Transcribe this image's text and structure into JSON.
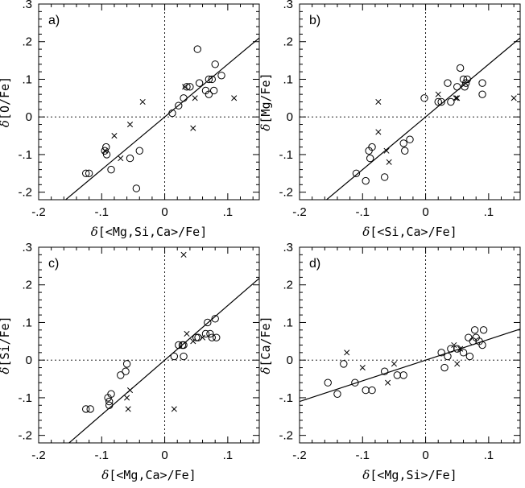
{
  "chart_data": [
    {
      "type": "scatter",
      "panel": "a)",
      "xlabel_prefix": "δ",
      "xlabel": "[<Mg,Si,Ca>/Fe]",
      "ylabel_prefix": "δ",
      "ylabel": "[O/Fe]",
      "xlim": [
        -0.2,
        0.15
      ],
      "ylim": [
        -0.22,
        0.3
      ],
      "xticks": [
        -0.2,
        -0.1,
        0,
        0.1
      ],
      "xtick_labels": [
        "-.2",
        "-.1",
        "0",
        ".1"
      ],
      "yticks": [
        -0.2,
        -0.1,
        0,
        0.1,
        0.2,
        0.3
      ],
      "ytick_labels": [
        "-.2",
        "-.1",
        "0",
        ".1",
        ".2",
        ".3"
      ],
      "fit_line": {
        "slope": 1.4,
        "intercept": 0.0
      },
      "series": [
        {
          "marker": "circle",
          "points": [
            [
              -0.125,
              -0.15
            ],
            [
              -0.12,
              -0.15
            ],
            [
              -0.095,
              -0.09
            ],
            [
              -0.093,
              -0.08
            ],
            [
              -0.092,
              -0.1
            ],
            [
              -0.085,
              -0.14
            ],
            [
              -0.055,
              -0.11
            ],
            [
              -0.045,
              -0.19
            ],
            [
              -0.04,
              -0.09
            ],
            [
              0.012,
              0.01
            ],
            [
              0.022,
              0.03
            ],
            [
              0.03,
              0.05
            ],
            [
              0.035,
              0.08
            ],
            [
              0.04,
              0.08
            ],
            [
              0.052,
              0.18
            ],
            [
              0.055,
              0.09
            ],
            [
              0.065,
              0.07
            ],
            [
              0.07,
              0.06
            ],
            [
              0.07,
              0.1
            ],
            [
              0.075,
              0.1
            ],
            [
              0.08,
              0.14
            ],
            [
              0.078,
              0.07
            ],
            [
              0.09,
              0.11
            ]
          ]
        },
        {
          "marker": "cross",
          "points": [
            [
              -0.095,
              -0.09
            ],
            [
              -0.08,
              -0.05
            ],
            [
              -0.07,
              -0.11
            ],
            [
              -0.055,
              -0.02
            ],
            [
              -0.035,
              0.04
            ],
            [
              0.032,
              0.08
            ],
            [
              0.045,
              -0.03
            ],
            [
              0.048,
              0.05
            ],
            [
              0.11,
              0.05
            ]
          ]
        }
      ]
    },
    {
      "type": "scatter",
      "panel": "b)",
      "xlabel_prefix": "δ",
      "xlabel": "[<Si,Ca>/Fe]",
      "ylabel_prefix": "δ",
      "ylabel": "[Mg/Fe]",
      "xlim": [
        -0.2,
        0.15
      ],
      "ylim": [
        -0.22,
        0.3
      ],
      "xticks": [
        -0.2,
        -0.1,
        0,
        0.1
      ],
      "xtick_labels": [
        "-.2",
        "-.1",
        "0",
        ".1"
      ],
      "yticks": [
        -0.2,
        -0.1,
        0,
        0.1,
        0.2,
        0.3
      ],
      "ytick_labels": [
        "-.2",
        "-.1",
        "0",
        ".1",
        ".2",
        ".3"
      ],
      "fit_line": {
        "slope": 1.4,
        "intercept": 0.0
      },
      "series": [
        {
          "marker": "circle",
          "points": [
            [
              -0.11,
              -0.15
            ],
            [
              -0.095,
              -0.17
            ],
            [
              -0.09,
              -0.09
            ],
            [
              -0.088,
              -0.11
            ],
            [
              -0.085,
              -0.08
            ],
            [
              -0.065,
              -0.16
            ],
            [
              -0.035,
              -0.07
            ],
            [
              -0.033,
              -0.09
            ],
            [
              -0.025,
              -0.06
            ],
            [
              -0.002,
              0.05
            ],
            [
              0.02,
              0.04
            ],
            [
              0.025,
              0.04
            ],
            [
              0.035,
              0.09
            ],
            [
              0.04,
              0.04
            ],
            [
              0.05,
              0.08
            ],
            [
              0.055,
              0.13
            ],
            [
              0.06,
              0.1
            ],
            [
              0.062,
              0.08
            ],
            [
              0.064,
              0.09
            ],
            [
              0.066,
              0.1
            ],
            [
              0.09,
              0.09
            ],
            [
              0.09,
              0.06
            ]
          ]
        },
        {
          "marker": "cross",
          "points": [
            [
              -0.075,
              0.04
            ],
            [
              -0.075,
              -0.04
            ],
            [
              -0.062,
              -0.09
            ],
            [
              -0.058,
              -0.12
            ],
            [
              0.02,
              0.06
            ],
            [
              0.048,
              0.05
            ],
            [
              0.05,
              0.05
            ],
            [
              0.14,
              0.05
            ]
          ]
        }
      ]
    },
    {
      "type": "scatter",
      "panel": "c)",
      "xlabel_prefix": "δ",
      "xlabel": "[<Mg,Ca>/Fe]",
      "ylabel_prefix": "δ",
      "ylabel": "[Si/Fe]",
      "xlim": [
        -0.2,
        0.15
      ],
      "ylim": [
        -0.22,
        0.3
      ],
      "xticks": [
        -0.2,
        -0.1,
        0,
        0.1
      ],
      "xtick_labels": [
        "-.2",
        "-.1",
        "0",
        ".1"
      ],
      "yticks": [
        -0.2,
        -0.1,
        0,
        0.1,
        0.2,
        0.3
      ],
      "ytick_labels": [
        "-.2",
        "-.1",
        "0",
        ".1",
        ".2",
        ".3"
      ],
      "fit_line": {
        "slope": 1.45,
        "intercept": 0.0
      },
      "series": [
        {
          "marker": "circle",
          "points": [
            [
              -0.125,
              -0.13
            ],
            [
              -0.118,
              -0.13
            ],
            [
              -0.09,
              -0.1
            ],
            [
              -0.088,
              -0.11
            ],
            [
              -0.088,
              -0.12
            ],
            [
              -0.085,
              -0.09
            ],
            [
              -0.07,
              -0.04
            ],
            [
              -0.062,
              -0.03
            ],
            [
              -0.06,
              -0.01
            ],
            [
              0.015,
              0.01
            ],
            [
              0.022,
              0.04
            ],
            [
              0.028,
              0.04
            ],
            [
              0.03,
              0.01
            ],
            [
              0.03,
              0.04
            ],
            [
              0.05,
              0.06
            ],
            [
              0.053,
              0.06
            ],
            [
              0.065,
              0.07
            ],
            [
              0.068,
              0.1
            ],
            [
              0.072,
              0.07
            ],
            [
              0.075,
              0.06
            ],
            [
              0.08,
              0.11
            ],
            [
              0.082,
              0.06
            ]
          ]
        },
        {
          "marker": "cross",
          "points": [
            [
              -0.06,
              -0.1
            ],
            [
              -0.058,
              -0.13
            ],
            [
              -0.055,
              -0.08
            ],
            [
              0.015,
              -0.13
            ],
            [
              0.03,
              0.28
            ],
            [
              0.035,
              0.07
            ],
            [
              0.045,
              0.05
            ],
            [
              0.06,
              0.06
            ]
          ]
        }
      ]
    },
    {
      "type": "scatter",
      "panel": "d)",
      "xlabel_prefix": "δ",
      "xlabel": "[<Mg,Si>/Fe]",
      "ylabel_prefix": "δ",
      "ylabel": "[Ca/Fe]",
      "xlim": [
        -0.2,
        0.15
      ],
      "ylim": [
        -0.22,
        0.3
      ],
      "xticks": [
        -0.2,
        -0.1,
        0,
        0.1
      ],
      "xtick_labels": [
        "-.2",
        "-.1",
        "0",
        ".1"
      ],
      "yticks": [
        -0.2,
        -0.1,
        0,
        0.1,
        0.2,
        0.3
      ],
      "ytick_labels": [
        "-.2",
        "-.1",
        "0",
        ".1",
        ".2",
        ".3"
      ],
      "fit_line": {
        "slope": 0.55,
        "intercept": 0.0
      },
      "series": [
        {
          "marker": "circle",
          "points": [
            [
              -0.155,
              -0.06
            ],
            [
              -0.14,
              -0.09
            ],
            [
              -0.13,
              -0.01
            ],
            [
              -0.112,
              -0.06
            ],
            [
              -0.095,
              -0.08
            ],
            [
              -0.085,
              -0.08
            ],
            [
              -0.065,
              -0.03
            ],
            [
              -0.045,
              -0.04
            ],
            [
              -0.035,
              -0.04
            ],
            [
              0.025,
              0.02
            ],
            [
              0.03,
              -0.02
            ],
            [
              0.035,
              0.01
            ],
            [
              0.04,
              0.03
            ],
            [
              0.05,
              0.03
            ],
            [
              0.06,
              0.02
            ],
            [
              0.068,
              0.06
            ],
            [
              0.07,
              0.01
            ],
            [
              0.075,
              0.05
            ],
            [
              0.078,
              0.08
            ],
            [
              0.08,
              0.06
            ],
            [
              0.085,
              0.05
            ],
            [
              0.09,
              0.04
            ],
            [
              0.092,
              0.08
            ]
          ]
        },
        {
          "marker": "cross",
          "points": [
            [
              -0.125,
              0.02
            ],
            [
              -0.1,
              -0.02
            ],
            [
              -0.06,
              -0.06
            ],
            [
              -0.05,
              -0.01
            ],
            [
              0.045,
              0.04
            ],
            [
              0.05,
              -0.01
            ],
            [
              0.055,
              0.03
            ]
          ]
        }
      ]
    }
  ]
}
